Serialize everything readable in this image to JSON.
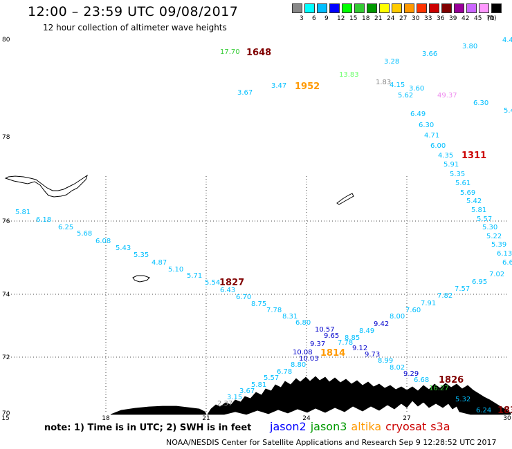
{
  "header": {
    "title": "12:00 – 23:59 UTC 09/08/2017",
    "subtitle": "12 hour collection of altimeter wave heights"
  },
  "legend": {
    "unit": "(ft)",
    "bins": [
      {
        "label": "3",
        "color": "#888888"
      },
      {
        "label": "6",
        "color": "#00ffff"
      },
      {
        "label": "9",
        "color": "#00bfff"
      },
      {
        "label": "12",
        "color": "#0000ff"
      },
      {
        "label": "15",
        "color": "#00ff00"
      },
      {
        "label": "18",
        "color": "#33cc33"
      },
      {
        "label": "21",
        "color": "#009900"
      },
      {
        "label": "24",
        "color": "#ffff00"
      },
      {
        "label": "27",
        "color": "#ffcc00"
      },
      {
        "label": "30",
        "color": "#ff9900"
      },
      {
        "label": "33",
        "color": "#ff3300"
      },
      {
        "label": "36",
        "color": "#cc0000"
      },
      {
        "label": "39",
        "color": "#800000"
      },
      {
        "label": "42",
        "color": "#990099"
      },
      {
        "label": "45",
        "color": "#cc66ff"
      },
      {
        "label": "70",
        "color": "#ff99ff"
      },
      {
        "label": "",
        "color": "#000000"
      }
    ]
  },
  "axes": {
    "lat_labels": [
      "80",
      "78",
      "76",
      "74",
      "72",
      "70"
    ],
    "lon_labels": [
      "15",
      "18",
      "21",
      "24",
      "27",
      "30"
    ]
  },
  "points": [
    {
      "t": "17.70",
      "c": "#33cc33"
    },
    {
      "t": "3.67",
      "c": "#00bfff"
    },
    {
      "t": "3.47",
      "c": "#00bfff"
    },
    {
      "t": "13.83",
      "c": "#66ff66"
    },
    {
      "t": "3.28",
      "c": "#00bfff"
    },
    {
      "t": "3.66",
      "c": "#00bfff"
    },
    {
      "t": "3.80",
      "c": "#00bfff"
    },
    {
      "t": "4.4",
      "c": "#00bfff"
    },
    {
      "t": "1.83",
      "c": "#888888"
    },
    {
      "t": "4.15",
      "c": "#00bfff"
    },
    {
      "t": "3.60",
      "c": "#00bfff"
    },
    {
      "t": "5.62",
      "c": "#00bfff"
    },
    {
      "t": "49.37",
      "c": "#ee88ee"
    },
    {
      "t": "6.30",
      "c": "#00bfff"
    },
    {
      "t": "5.4",
      "c": "#00bfff"
    },
    {
      "t": "6.49",
      "c": "#00bfff"
    },
    {
      "t": "6.30",
      "c": "#00bfff"
    },
    {
      "t": "4.71",
      "c": "#00bfff"
    },
    {
      "t": "6.00",
      "c": "#00bfff"
    },
    {
      "t": "4.35",
      "c": "#00bfff"
    },
    {
      "t": "5.91",
      "c": "#00bfff"
    },
    {
      "t": "5.35",
      "c": "#00bfff"
    },
    {
      "t": "5.61",
      "c": "#00bfff"
    },
    {
      "t": "5.69",
      "c": "#00bfff"
    },
    {
      "t": "5.42",
      "c": "#00bfff"
    },
    {
      "t": "5.81",
      "c": "#00bfff"
    },
    {
      "t": "5.57",
      "c": "#00bfff"
    },
    {
      "t": "5.30",
      "c": "#00bfff"
    },
    {
      "t": "5.22",
      "c": "#00bfff"
    },
    {
      "t": "5.39",
      "c": "#00bfff"
    },
    {
      "t": "6.13",
      "c": "#00bfff"
    },
    {
      "t": "6.6",
      "c": "#00bfff"
    },
    {
      "t": "7.02",
      "c": "#00bfff"
    },
    {
      "t": "6.95",
      "c": "#00bfff"
    },
    {
      "t": "7.57",
      "c": "#00bfff"
    },
    {
      "t": "7.82",
      "c": "#00bfff"
    },
    {
      "t": "7.91",
      "c": "#00bfff"
    },
    {
      "t": "7.60",
      "c": "#00bfff"
    },
    {
      "t": "8.00",
      "c": "#00bfff"
    },
    {
      "t": "9.42",
      "c": "#0000cc"
    },
    {
      "t": "8.49",
      "c": "#00bfff"
    },
    {
      "t": "9.12",
      "c": "#0000cc"
    },
    {
      "t": "9.73",
      "c": "#0000cc"
    },
    {
      "t": "8.99",
      "c": "#00bfff"
    },
    {
      "t": "8.02",
      "c": "#00bfff"
    },
    {
      "t": "9.29",
      "c": "#0000cc"
    },
    {
      "t": "6.68",
      "c": "#00bfff"
    },
    {
      "t": "16.27",
      "c": "#33cc33"
    },
    {
      "t": "5.32",
      "c": "#00bfff"
    },
    {
      "t": "6.24",
      "c": "#00bfff"
    },
    {
      "t": "5.81",
      "c": "#00bfff"
    },
    {
      "t": "6.18",
      "c": "#00bfff"
    },
    {
      "t": "6.25",
      "c": "#00bfff"
    },
    {
      "t": "5.68",
      "c": "#00bfff"
    },
    {
      "t": "6.08",
      "c": "#00bfff"
    },
    {
      "t": "5.43",
      "c": "#00bfff"
    },
    {
      "t": "5.35",
      "c": "#00bfff"
    },
    {
      "t": "4.87",
      "c": "#00bfff"
    },
    {
      "t": "5.10",
      "c": "#00bfff"
    },
    {
      "t": "5.71",
      "c": "#00bfff"
    },
    {
      "t": "5.54",
      "c": "#00bfff"
    },
    {
      "t": "6.43",
      "c": "#00bfff"
    },
    {
      "t": "6.70",
      "c": "#00bfff"
    },
    {
      "t": "8.75",
      "c": "#00bfff"
    },
    {
      "t": "7.78",
      "c": "#00bfff"
    },
    {
      "t": "8.31",
      "c": "#00bfff"
    },
    {
      "t": "6.80",
      "c": "#00bfff"
    },
    {
      "t": "10.57",
      "c": "#0000cc"
    },
    {
      "t": "9.65",
      "c": "#0000cc"
    },
    {
      "t": "8.85",
      "c": "#00bfff"
    },
    {
      "t": "9.37",
      "c": "#0000cc"
    },
    {
      "t": "7.78",
      "c": "#00bfff"
    },
    {
      "t": "10.08",
      "c": "#0000cc"
    },
    {
      "t": "10.03",
      "c": "#0000cc"
    },
    {
      "t": "8.80",
      "c": "#00bfff"
    },
    {
      "t": "6.78",
      "c": "#00bfff"
    },
    {
      "t": "5.57",
      "c": "#00bfff"
    },
    {
      "t": "5.81",
      "c": "#00bfff"
    },
    {
      "t": "3.67",
      "c": "#00bfff"
    },
    {
      "t": "3.15",
      "c": "#00bfff"
    },
    {
      "t": "2.37",
      "c": "#888888"
    }
  ],
  "times": [
    {
      "t": "1648",
      "c": "#800000"
    },
    {
      "t": "1952",
      "c": "#ff9900"
    },
    {
      "t": "1311",
      "c": "#cc0000"
    },
    {
      "t": "1827",
      "c": "#800000"
    },
    {
      "t": "1814",
      "c": "#ff9900"
    },
    {
      "t": "1826",
      "c": "#800000"
    },
    {
      "t": "183",
      "c": "#800000"
    }
  ],
  "footer": {
    "note": "note:  1) Time is in UTC;  2) SWH is in feet",
    "satellites": [
      {
        "name": "jason2",
        "color": "#0000ff"
      },
      {
        "name": "jason3",
        "color": "#009900"
      },
      {
        "name": "altika",
        "color": "#ff9900"
      },
      {
        "name": "cryosat",
        "color": "#cc0000"
      },
      {
        "name": "s3a",
        "color": "#cc0000"
      }
    ],
    "credit": "NOAA/NESDIS Center for Satellite Applications and Research     Sep  9 12:28:52 UTC 2017"
  }
}
